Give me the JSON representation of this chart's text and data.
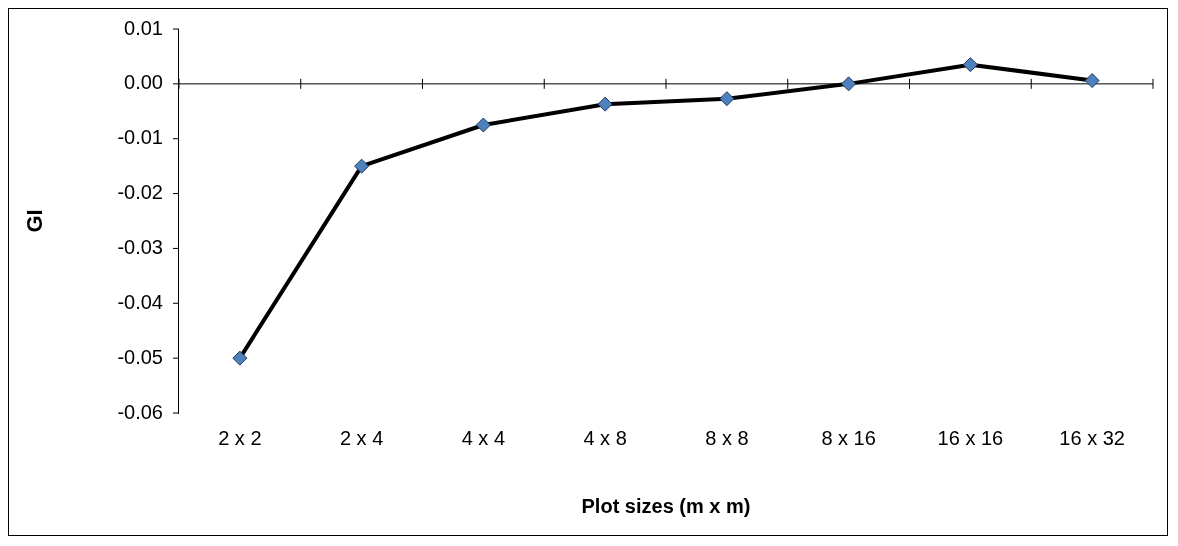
{
  "chart_data": {
    "type": "line",
    "xlabel": "Plot sizes (m x m)",
    "ylabel": "GI",
    "categories": [
      "2 x 2",
      "2 x 4",
      "4 x 4",
      "4 x 8",
      "8 x 8",
      "8 x 16",
      "16 x 16",
      "16 x 32"
    ],
    "series": [
      {
        "color": "#000000",
        "values": [
          -0.05,
          -0.015,
          -0.0075,
          -0.0037,
          -0.0027,
          0.0,
          0.0035,
          0.0006
        ]
      }
    ],
    "ylim": [
      -0.06,
      0.01
    ],
    "yticks": [
      0.01,
      {
        "value": 0,
        "label": "0.00"
      },
      -0.01,
      -0.02,
      -0.03,
      -0.04,
      -0.05,
      -0.06
    ],
    "ref_lines": [
      {
        "axis": "y",
        "value": 0,
        "color": "#000000",
        "line_style": "solid"
      }
    ],
    "grid": false,
    "legend": false,
    "marker": "diamond",
    "line_style": "solid"
  }
}
